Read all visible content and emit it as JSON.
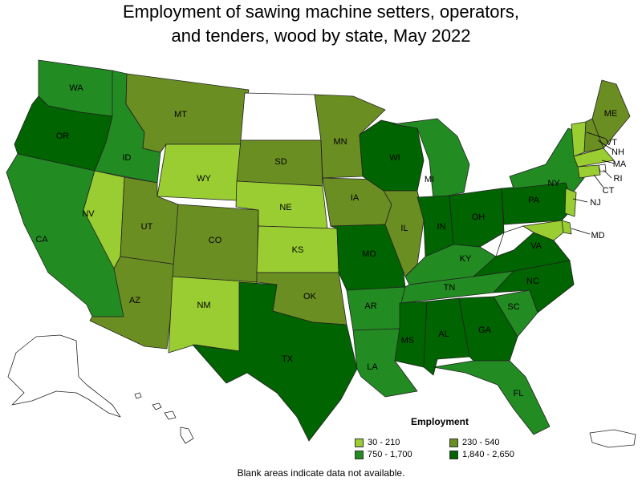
{
  "title_line1": "Employment of sawing machine setters, operators,",
  "title_line2": "and tenders, wood by state, May 2022",
  "legend": {
    "title": "Employment",
    "items": [
      {
        "label": "30 - 210",
        "color": "#9acd32"
      },
      {
        "label": "230 - 540",
        "color": "#6b8e23"
      },
      {
        "label": "750 - 1,700",
        "color": "#228b22"
      },
      {
        "label": "1,840 - 2,650",
        "color": "#006400"
      }
    ]
  },
  "footnote": "Blank areas indicate data not available.",
  "states": [
    {
      "abbr": "WA",
      "bin": 2
    },
    {
      "abbr": "OR",
      "bin": 3
    },
    {
      "abbr": "CA",
      "bin": 2
    },
    {
      "abbr": "ID",
      "bin": 2
    },
    {
      "abbr": "NV",
      "bin": 0
    },
    {
      "abbr": "MT",
      "bin": 1
    },
    {
      "abbr": "WY",
      "bin": 0
    },
    {
      "abbr": "UT",
      "bin": 1
    },
    {
      "abbr": "AZ",
      "bin": 1
    },
    {
      "abbr": "CO",
      "bin": 1
    },
    {
      "abbr": "NM",
      "bin": 0
    },
    {
      "abbr": "ND",
      "bin": null
    },
    {
      "abbr": "SD",
      "bin": 1
    },
    {
      "abbr": "NE",
      "bin": 0
    },
    {
      "abbr": "KS",
      "bin": 0
    },
    {
      "abbr": "OK",
      "bin": 1
    },
    {
      "abbr": "TX",
      "bin": 3
    },
    {
      "abbr": "MN",
      "bin": 1
    },
    {
      "abbr": "IA",
      "bin": 1
    },
    {
      "abbr": "MO",
      "bin": 3
    },
    {
      "abbr": "AR",
      "bin": 2
    },
    {
      "abbr": "LA",
      "bin": 2
    },
    {
      "abbr": "WI",
      "bin": 3
    },
    {
      "abbr": "IL",
      "bin": 1
    },
    {
      "abbr": "MI",
      "bin": 2
    },
    {
      "abbr": "IN",
      "bin": 3
    },
    {
      "abbr": "OH",
      "bin": 3
    },
    {
      "abbr": "KY",
      "bin": 2
    },
    {
      "abbr": "TN",
      "bin": 2
    },
    {
      "abbr": "MS",
      "bin": 3
    },
    {
      "abbr": "AL",
      "bin": 3
    },
    {
      "abbr": "GA",
      "bin": 3
    },
    {
      "abbr": "FL",
      "bin": 2
    },
    {
      "abbr": "SC",
      "bin": 2
    },
    {
      "abbr": "NC",
      "bin": 3
    },
    {
      "abbr": "VA",
      "bin": 3
    },
    {
      "abbr": "WV",
      "bin": null
    },
    {
      "abbr": "PA",
      "bin": 3
    },
    {
      "abbr": "NY",
      "bin": 2
    },
    {
      "abbr": "VT",
      "bin": 0
    },
    {
      "abbr": "NH",
      "bin": 1
    },
    {
      "abbr": "ME",
      "bin": 1
    },
    {
      "abbr": "MA",
      "bin": 0
    },
    {
      "abbr": "RI",
      "bin": null
    },
    {
      "abbr": "CT",
      "bin": 0
    },
    {
      "abbr": "NJ",
      "bin": 0
    },
    {
      "abbr": "DE",
      "bin": 0
    },
    {
      "abbr": "MD",
      "bin": 0
    },
    {
      "abbr": "AK",
      "bin": null
    },
    {
      "abbr": "HI",
      "bin": null
    },
    {
      "abbr": "PR",
      "bin": null
    }
  ]
}
